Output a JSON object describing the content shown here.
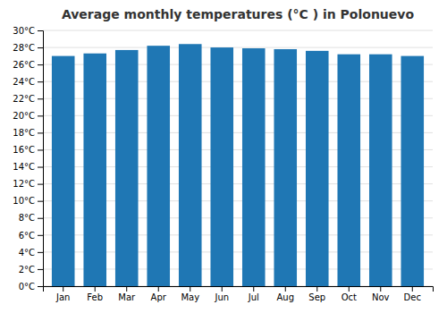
{
  "chart_data": {
    "type": "bar",
    "title": "Average monthly temperatures (°C ) in Polonuevo",
    "categories": [
      "Jan",
      "Feb",
      "Mar",
      "Apr",
      "May",
      "Jun",
      "Jul",
      "Aug",
      "Sep",
      "Oct",
      "Nov",
      "Dec"
    ],
    "values": [
      27.0,
      27.3,
      27.7,
      28.2,
      28.4,
      28.0,
      27.9,
      27.8,
      27.6,
      27.2,
      27.2,
      27.0
    ],
    "ylim": [
      0,
      30
    ],
    "yticks": [
      {
        "value": 0,
        "label": "0°C"
      },
      {
        "value": 2,
        "label": "2°C"
      },
      {
        "value": 4,
        "label": "4°C"
      },
      {
        "value": 6,
        "label": "6°C"
      },
      {
        "value": 8,
        "label": "8°C"
      },
      {
        "value": 10,
        "label": "10°C"
      },
      {
        "value": 12,
        "label": "12°C"
      },
      {
        "value": 14,
        "label": "14°C"
      },
      {
        "value": 16,
        "label": "16°C"
      },
      {
        "value": 18,
        "label": "18°C"
      },
      {
        "value": 20,
        "label": "20°C"
      },
      {
        "value": 22,
        "label": "22°C"
      },
      {
        "value": 24,
        "label": "24°C"
      },
      {
        "value": 26,
        "label": "26°C"
      },
      {
        "value": 28,
        "label": "28°C"
      },
      {
        "value": 30,
        "label": "30°C"
      }
    ],
    "grid": true
  }
}
